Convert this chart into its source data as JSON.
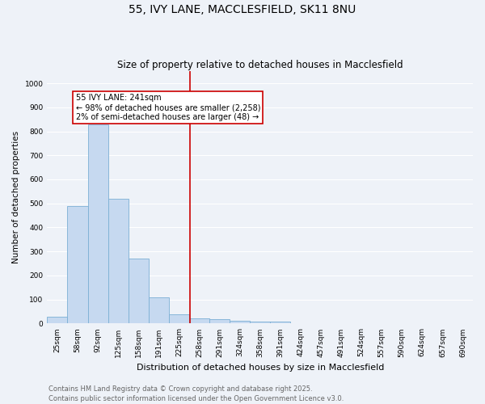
{
  "title": "55, IVY LANE, MACCLESFIELD, SK11 8NU",
  "subtitle": "Size of property relative to detached houses in Macclesfield",
  "xlabel": "Distribution of detached houses by size in Macclesfield",
  "ylabel": "Number of detached properties",
  "bin_labels": [
    "25sqm",
    "58sqm",
    "92sqm",
    "125sqm",
    "158sqm",
    "191sqm",
    "225sqm",
    "258sqm",
    "291sqm",
    "324sqm",
    "358sqm",
    "391sqm",
    "424sqm",
    "457sqm",
    "491sqm",
    "524sqm",
    "557sqm",
    "590sqm",
    "624sqm",
    "657sqm",
    "690sqm"
  ],
  "bar_values": [
    28,
    490,
    830,
    520,
    270,
    110,
    40,
    22,
    18,
    10,
    8,
    8,
    0,
    0,
    0,
    0,
    0,
    0,
    0,
    0,
    0
  ],
  "bar_color": "#c6d9f0",
  "bar_edge_color": "#7bafd4",
  "vline_x": 6.55,
  "vline_color": "#cc0000",
  "annotation_text": "55 IVY LANE: 241sqm\n← 98% of detached houses are smaller (2,258)\n2% of semi-detached houses are larger (48) →",
  "annotation_box_color": "#ffffff",
  "annotation_box_edge_color": "#cc0000",
  "ylim": [
    0,
    1050
  ],
  "yticks": [
    0,
    100,
    200,
    300,
    400,
    500,
    600,
    700,
    800,
    900,
    1000
  ],
  "footer_text": "Contains HM Land Registry data © Crown copyright and database right 2025.\nContains public sector information licensed under the Open Government Licence v3.0.",
  "bg_color": "#eef2f8",
  "grid_color": "#ffffff",
  "title_fontsize": 10,
  "subtitle_fontsize": 8.5,
  "axis_label_fontsize": 7.5,
  "tick_fontsize": 6.5,
  "footer_fontsize": 6.0,
  "annot_fontsize": 7.0
}
